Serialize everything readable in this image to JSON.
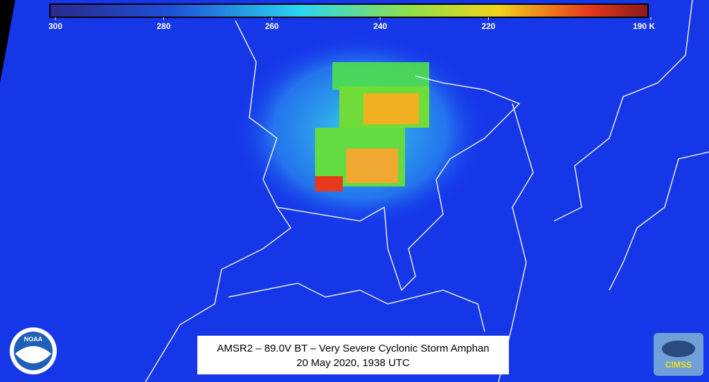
{
  "colorbar": {
    "ticks": [
      300,
      280,
      260,
      240,
      220,
      {
        "value": 190,
        "label": "190 K"
      }
    ]
  },
  "caption": {
    "line1": "AMSR2 – 89.0V BT – Very Severe Cyclonic Storm Amphan",
    "line2": "20 May 2020, 1938 UTC"
  },
  "logos": {
    "noaa": "NOAA",
    "cimss": "CIMSS"
  }
}
